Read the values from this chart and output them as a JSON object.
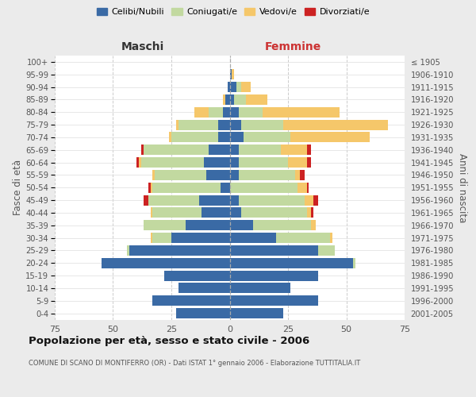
{
  "age_groups": [
    "0-4",
    "5-9",
    "10-14",
    "15-19",
    "20-24",
    "25-29",
    "30-34",
    "35-39",
    "40-44",
    "45-49",
    "50-54",
    "55-59",
    "60-64",
    "65-69",
    "70-74",
    "75-79",
    "80-84",
    "85-89",
    "90-94",
    "95-99",
    "100+"
  ],
  "birth_years": [
    "2001-2005",
    "1996-2000",
    "1991-1995",
    "1986-1990",
    "1981-1985",
    "1976-1980",
    "1971-1975",
    "1966-1970",
    "1961-1965",
    "1956-1960",
    "1951-1955",
    "1946-1950",
    "1941-1945",
    "1936-1940",
    "1931-1935",
    "1926-1930",
    "1921-1925",
    "1916-1920",
    "1911-1915",
    "1906-1910",
    "≤ 1905"
  ],
  "males": {
    "celibi": [
      23,
      33,
      22,
      28,
      55,
      43,
      25,
      19,
      12,
      13,
      4,
      10,
      11,
      9,
      5,
      5,
      3,
      2,
      1,
      0,
      0
    ],
    "coniugati": [
      0,
      0,
      0,
      0,
      0,
      1,
      8,
      18,
      21,
      22,
      29,
      22,
      27,
      28,
      20,
      17,
      6,
      0,
      0,
      0,
      0
    ],
    "vedovi": [
      0,
      0,
      0,
      0,
      0,
      0,
      1,
      0,
      1,
      0,
      1,
      1,
      1,
      0,
      1,
      1,
      6,
      1,
      0,
      0,
      0
    ],
    "divorziati": [
      0,
      0,
      0,
      0,
      0,
      0,
      0,
      0,
      0,
      2,
      1,
      0,
      1,
      1,
      0,
      0,
      0,
      0,
      0,
      0,
      0
    ]
  },
  "females": {
    "nubili": [
      23,
      38,
      26,
      38,
      53,
      38,
      20,
      10,
      5,
      4,
      0,
      4,
      4,
      4,
      6,
      5,
      4,
      2,
      3,
      1,
      0
    ],
    "coniugate": [
      0,
      0,
      0,
      0,
      1,
      7,
      23,
      25,
      28,
      28,
      29,
      24,
      21,
      18,
      20,
      18,
      10,
      5,
      2,
      0,
      0
    ],
    "vedove": [
      0,
      0,
      0,
      0,
      0,
      0,
      1,
      2,
      2,
      4,
      4,
      2,
      8,
      11,
      34,
      45,
      33,
      9,
      4,
      1,
      0
    ],
    "divorziate": [
      0,
      0,
      0,
      0,
      0,
      0,
      0,
      0,
      1,
      2,
      1,
      2,
      2,
      2,
      0,
      0,
      0,
      0,
      0,
      0,
      0
    ]
  },
  "colors": {
    "celibi": "#3A6AA5",
    "coniugati": "#C2D9A0",
    "vedovi": "#F5C76A",
    "divorziati": "#CC2222"
  },
  "xlim": 75,
  "title": "Popolazione per età, sesso e stato civile - 2006",
  "subtitle": "COMUNE DI SCANO DI MONTIFERRO (OR) - Dati ISTAT 1° gennaio 2006 - Elaborazione TUTTITALIA.IT",
  "ylabel_left": "Fasce di età",
  "ylabel_right": "Anni di nascita",
  "legend_labels": [
    "Celibi/Nubili",
    "Coniugati/e",
    "Vedovi/e",
    "Divorziati/e"
  ],
  "header_maschi": "Maschi",
  "header_femmine": "Femmine",
  "bg_color": "#ebebeb",
  "plot_bg_color": "#ffffff"
}
